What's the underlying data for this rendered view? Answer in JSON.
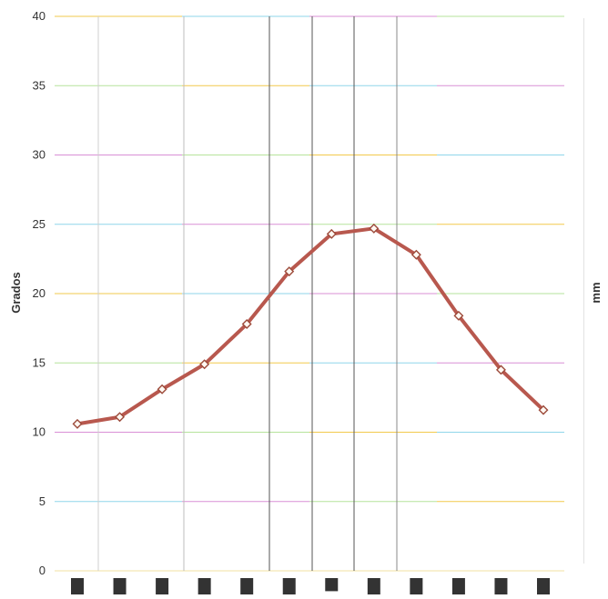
{
  "chart_data": {
    "type": "line",
    "title": "",
    "ylabel": "Grados",
    "y2label": "mm",
    "ylim": [
      0,
      40
    ],
    "yticks": [
      0,
      5,
      10,
      15,
      20,
      25,
      30,
      35,
      40
    ],
    "grid": true,
    "x": [
      1,
      2,
      3,
      4,
      5,
      6,
      7,
      8,
      9,
      10,
      11,
      12
    ],
    "series": [
      {
        "values": [
          10.6,
          11.1,
          13.1,
          14.9,
          17.8,
          21.6,
          24.3,
          24.7,
          22.8,
          18.4,
          14.5,
          11.6
        ],
        "color": "#b8584e",
        "marker": "diamond"
      }
    ],
    "bars": [
      1,
      1,
      1,
      1,
      1,
      1,
      0.8,
      1,
      1,
      1,
      1,
      1
    ],
    "bar_color": "#333333",
    "gridline_colors": [
      "#f2c94c",
      "#8fd6ea",
      "#d98fd6",
      "#b6e39b"
    ]
  }
}
